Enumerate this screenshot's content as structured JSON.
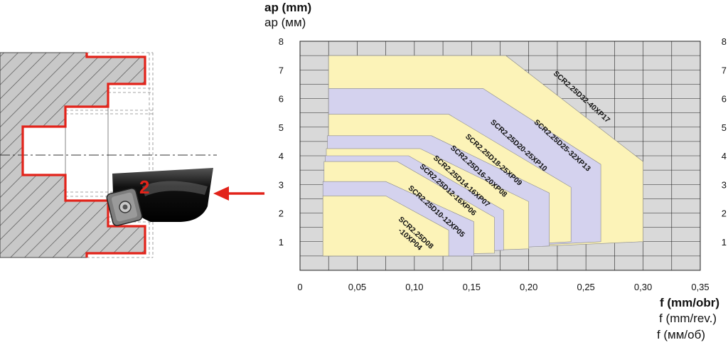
{
  "illustration": {
    "tool_marker": "2",
    "colors": {
      "profile": "#e2231a",
      "arrow": "#e2231a",
      "hatch": "#555555",
      "tool": "#1c1c1c"
    },
    "icons": [
      "boring-tool-icon",
      "feed-arrow-icon",
      "workpiece-section-icon"
    ]
  },
  "chart_data": {
    "type": "area",
    "ylabel": "ap (mm)",
    "ylabel_alt": [
      "ap (мм)"
    ],
    "xlabel": "f (mm/obr)",
    "xlabel_alt": [
      "f (mm/rev.)",
      "f (мм/об)"
    ],
    "xlim": [
      0,
      0.35
    ],
    "ylim": [
      0,
      8
    ],
    "x_ticks": [
      "0",
      "0,05",
      "0,10",
      "0,15",
      "0,20",
      "0,25",
      "0,30",
      "0,35"
    ],
    "y_ticks": [
      "1",
      "2",
      "3",
      "4",
      "5",
      "6",
      "7",
      "8"
    ],
    "grid": true,
    "colors": {
      "grid_bg": "#d9d9d9",
      "grid_line": "#222222",
      "yellow": "#fcf3b8",
      "lavender": "#d4d2ee",
      "band_edge": "#8a8a8a"
    },
    "series": [
      {
        "name": "SCR2.25D32-40XP17",
        "color": "yellow",
        "outline": [
          [
            0.025,
            0.5
          ],
          [
            0.025,
            7.5
          ],
          [
            0.18,
            7.5
          ],
          [
            0.3,
            3.8
          ],
          [
            0.3,
            1.0
          ],
          [
            0.298,
            1.0
          ]
        ]
      },
      {
        "name": "SCR2.25D25-32XP13",
        "color": "lavender",
        "outline": [
          [
            0.025,
            0.5
          ],
          [
            0.025,
            6.35
          ],
          [
            0.16,
            6.35
          ],
          [
            0.263,
            3.7
          ],
          [
            0.263,
            1.0
          ]
        ]
      },
      {
        "name": "SCR2.25D20-25XP10",
        "color": "yellow",
        "outline": [
          [
            0.025,
            0.5
          ],
          [
            0.025,
            5.45
          ],
          [
            0.13,
            5.45
          ],
          [
            0.237,
            2.9
          ],
          [
            0.237,
            1.0
          ]
        ]
      },
      {
        "name": "SCR2.25D18-25XP09",
        "color": "lavender",
        "outline": [
          [
            0.024,
            0.5
          ],
          [
            0.024,
            4.7
          ],
          [
            0.115,
            4.7
          ],
          [
            0.218,
            2.7
          ],
          [
            0.218,
            0.85
          ]
        ]
      },
      {
        "name": "SCR2.25D16-20XP08",
        "color": "yellow",
        "outline": [
          [
            0.023,
            0.5
          ],
          [
            0.023,
            4.25
          ],
          [
            0.105,
            4.25
          ],
          [
            0.2,
            2.4
          ],
          [
            0.2,
            0.75
          ]
        ]
      },
      {
        "name": "SCR2.25D14-16XP07",
        "color": "lavender",
        "outline": [
          [
            0.022,
            0.5
          ],
          [
            0.022,
            4.0
          ],
          [
            0.095,
            4.0
          ],
          [
            0.178,
            2.1
          ],
          [
            0.178,
            0.7
          ]
        ]
      },
      {
        "name": "SCR2.25D12-16XP06",
        "color": "yellow",
        "outline": [
          [
            0.021,
            0.5
          ],
          [
            0.021,
            3.8
          ],
          [
            0.085,
            3.8
          ],
          [
            0.17,
            1.85
          ],
          [
            0.17,
            0.6
          ]
        ]
      },
      {
        "name": "SCR2.25D10-12XP05",
        "color": "lavender",
        "outline": [
          [
            0.02,
            0.5
          ],
          [
            0.02,
            3.1
          ],
          [
            0.075,
            3.1
          ],
          [
            0.152,
            1.7
          ],
          [
            0.152,
            0.5
          ]
        ]
      },
      {
        "name": "SCR2.25D08\n-10XP04",
        "color": "yellow",
        "outline": [
          [
            0.02,
            0.5
          ],
          [
            0.02,
            2.6
          ],
          [
            0.075,
            2.6
          ],
          [
            0.13,
            1.4
          ],
          [
            0.13,
            0.5
          ]
        ]
      }
    ],
    "label_anchors": [
      [
        0.245,
        6.0
      ],
      [
        0.228,
        4.3
      ],
      [
        0.19,
        4.3
      ],
      [
        0.168,
        3.8
      ],
      [
        0.155,
        3.4
      ],
      [
        0.14,
        3.05
      ],
      [
        0.128,
        2.75
      ],
      [
        0.118,
        2.0
      ],
      [
        0.1,
        1.25
      ]
    ]
  }
}
